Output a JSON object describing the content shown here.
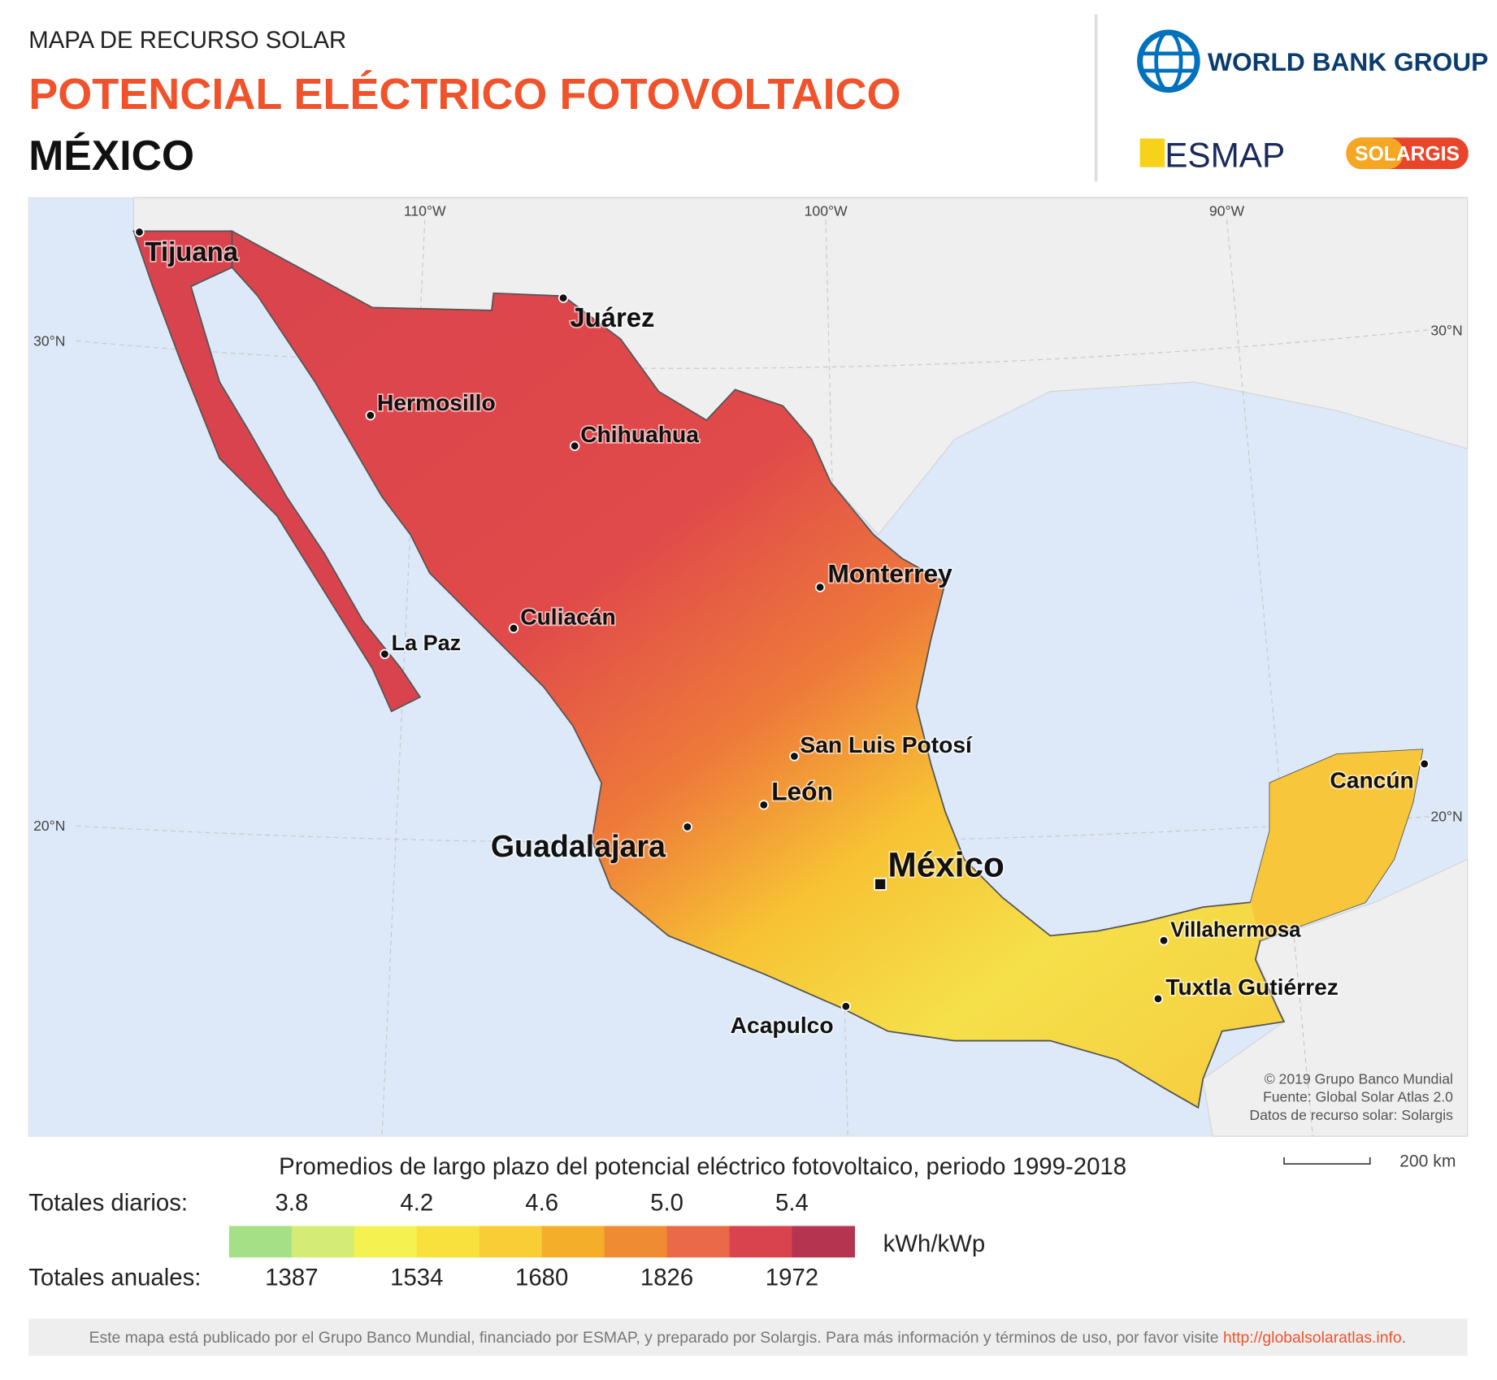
{
  "header": {
    "kicker": "MAPA DE RECURSO SOLAR",
    "title": "POTENCIAL ELÉCTRICO FOTOVOLTAICO",
    "country": "MÉXICO",
    "logos": [
      "WORLD BANK GROUP",
      "ESMAP",
      "SOLARGIS"
    ]
  },
  "map": {
    "graticule": {
      "top": [
        "110°W",
        "100°W",
        "90°W"
      ],
      "left": [
        "30°N",
        "20°N"
      ],
      "right": [
        "30°N",
        "20°N"
      ]
    },
    "cities": [
      "Tijuana",
      "Juárez",
      "Hermosillo",
      "Chihuahua",
      "Monterrey",
      "Culiacán",
      "La Paz",
      "San Luis Potosí",
      "León",
      "Guadalajara",
      "México",
      "Villahermosa",
      "Tuxtla Gutiérrez",
      "Acapulco",
      "Cancún"
    ],
    "credits": [
      "© 2019 Grupo Banco Mundial",
      "Fuente: Global Solar Atlas 2.0",
      "Datos de recurso solar: Solargis"
    ]
  },
  "legend": {
    "title": "Promedios de largo plazo del potencial eléctrico fotovoltaico, periodo 1999-2018",
    "daily_label": "Totales diarios:",
    "daily": [
      "3.8",
      "4.2",
      "4.6",
      "5.0",
      "5.4"
    ],
    "annual_label": "Totales anuales:",
    "annual": [
      1387,
      1534,
      1680,
      1826,
      1972
    ],
    "unit": "kWh/kWp",
    "colors": [
      "#a6e086",
      "#d4ec76",
      "#f5f150",
      "#f8e13d",
      "#f8cd36",
      "#f4ae2a",
      "#ef8c33",
      "#e96948",
      "#d9434d",
      "#b53550"
    ],
    "scale": "200 km"
  },
  "footer": {
    "text": "Este mapa está publicado por el Grupo Banco Mundial, financiado por ESMAP, y preparado por Solargis. Para más información y términos de uso, por favor visite ",
    "link": "http://globalsolaratlas.info",
    "end": "."
  }
}
